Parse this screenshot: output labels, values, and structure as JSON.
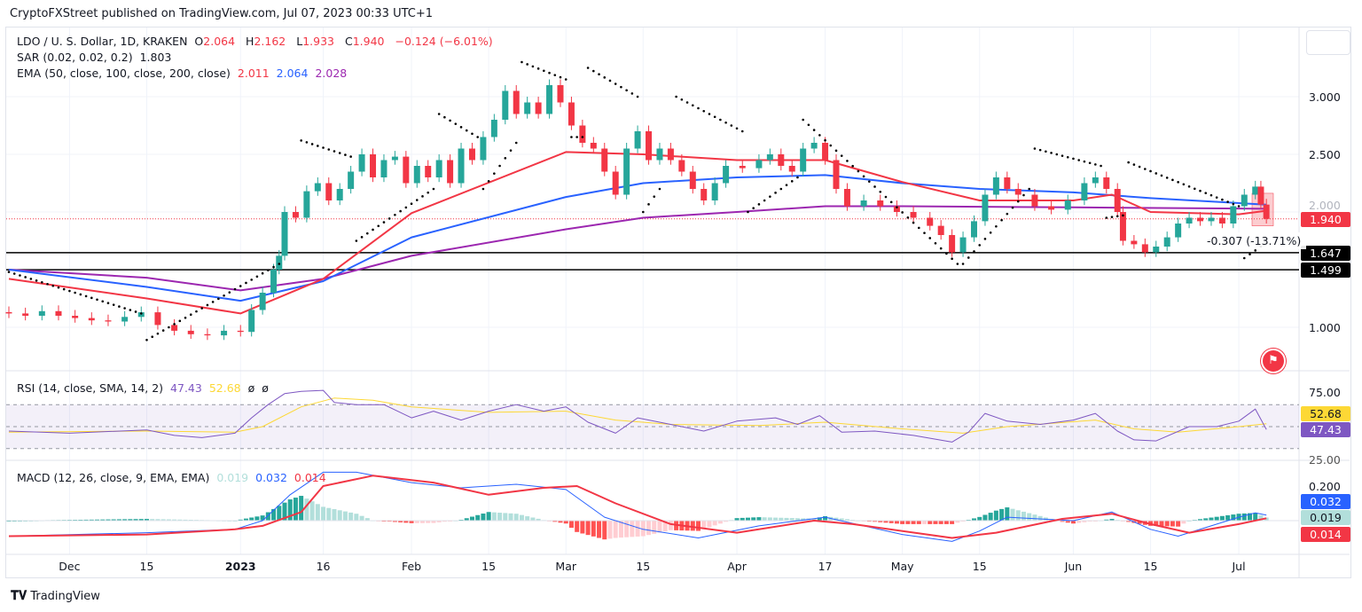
{
  "header": {
    "publisher": "CryptoFXStreet published on TradingView.com, Jul 07, 2023 00:33 UTC+1"
  },
  "legend": {
    "symbol": "LDO / U. S. Dollar, 1D, KRAKEN",
    "o_label": "O",
    "o": "2.064",
    "h_label": "H",
    "h": "2.162",
    "l_label": "L",
    "l": "1.933",
    "c_label": "C",
    "c": "1.940",
    "change": "−0.124 (−6.01%)",
    "sar": "SAR (0.02, 0.02, 0.2)",
    "sar_value": "1.803",
    "ema": "EMA (50, close, 100, close, 200, close)",
    "ema50": "2.011",
    "ema100": "2.064",
    "ema200": "2.028",
    "rsi": "RSI (14, close, SMA, 14, 2)",
    "rsi_value": "47.43",
    "rsi_sma": "52.68",
    "rsi_extra1": "ø",
    "rsi_extra2": "ø",
    "macd": "MACD (12, 26, close, 9, EMA, EMA)",
    "macd_hist": "0.019",
    "macd_line": "0.032",
    "macd_signal": "0.014"
  },
  "price_axis": {
    "ticks": [
      "3.000",
      "2.500",
      "2.000",
      "1.000"
    ],
    "last_price": "1.940",
    "level1": "1.647",
    "level2": "1.499"
  },
  "rsi_axis": {
    "ticks": [
      "75.00",
      "25.00"
    ],
    "sma_tag": "52.68",
    "rsi_tag": "47.43"
  },
  "macd_axis": {
    "ticks": [
      "0.200"
    ],
    "macd_tag": "0.032",
    "hist_tag": "0.019",
    "signal_tag": "0.014"
  },
  "measure": {
    "text": "-0.307 (-13.71%)"
  },
  "time_axis": [
    {
      "d": "2022-12-01",
      "t": "Dec"
    },
    {
      "d": "2022-12-15",
      "t": "15"
    },
    {
      "d": "2023-01-01",
      "t": "2023"
    },
    {
      "d": "2023-01-16",
      "t": "16"
    },
    {
      "d": "2023-02-01",
      "t": "Feb"
    },
    {
      "d": "2023-02-15",
      "t": "15"
    },
    {
      "d": "2023-03-01",
      "t": "Mar"
    },
    {
      "d": "2023-03-15",
      "t": "15"
    },
    {
      "d": "2023-04-01",
      "t": "Apr"
    },
    {
      "d": "2023-04-17",
      "t": "17"
    },
    {
      "d": "2023-05-01",
      "t": "May"
    },
    {
      "d": "2023-05-15",
      "t": "15"
    },
    {
      "d": "2023-06-01",
      "t": "Jun"
    },
    {
      "d": "2023-06-15",
      "t": "15"
    },
    {
      "d": "2023-07-01",
      "t": "Jul"
    }
  ],
  "footer": {
    "brand": "TradingView"
  },
  "colors": {
    "up": "#26a69a",
    "down": "#f23645",
    "ema50": "#f23645",
    "ema100": "#2962ff",
    "ema200": "#9c27b0",
    "rsi": "#7e57c2",
    "rsi_sma": "#fdd835",
    "macd": "#2962ff",
    "signal": "#f23645"
  },
  "chart_data": {
    "type": "candlestick",
    "title": "LDO / U. S. Dollar, 1D, KRAKEN",
    "ylim": [
      0.75,
      3.35
    ],
    "horizontal_levels": [
      1.647,
      1.499
    ],
    "closes": [
      [
        "2022-11-20",
        1.12
      ],
      [
        "2022-11-23",
        1.1
      ],
      [
        "2022-11-26",
        1.14
      ],
      [
        "2022-11-29",
        1.1
      ],
      [
        "2022-12-02",
        1.08
      ],
      [
        "2022-12-05",
        1.06
      ],
      [
        "2022-12-08",
        1.05
      ],
      [
        "2022-12-11",
        1.09
      ],
      [
        "2022-12-14",
        1.13
      ],
      [
        "2022-12-17",
        1.02
      ],
      [
        "2022-12-20",
        0.97
      ],
      [
        "2022-12-23",
        0.94
      ],
      [
        "2022-12-26",
        0.93
      ],
      [
        "2022-12-29",
        0.97
      ],
      [
        "2023-01-01",
        0.96
      ],
      [
        "2023-01-03",
        1.15
      ],
      [
        "2023-01-05",
        1.3
      ],
      [
        "2023-01-07",
        1.5
      ],
      [
        "2023-01-08",
        1.62
      ],
      [
        "2023-01-09",
        2.0
      ],
      [
        "2023-01-11",
        1.95
      ],
      [
        "2023-01-13",
        2.18
      ],
      [
        "2023-01-15",
        2.25
      ],
      [
        "2023-01-17",
        2.1
      ],
      [
        "2023-01-19",
        2.2
      ],
      [
        "2023-01-21",
        2.35
      ],
      [
        "2023-01-23",
        2.5
      ],
      [
        "2023-01-25",
        2.3
      ],
      [
        "2023-01-27",
        2.45
      ],
      [
        "2023-01-29",
        2.48
      ],
      [
        "2023-01-31",
        2.25
      ],
      [
        "2023-02-02",
        2.4
      ],
      [
        "2023-02-04",
        2.3
      ],
      [
        "2023-02-06",
        2.45
      ],
      [
        "2023-02-08",
        2.25
      ],
      [
        "2023-02-10",
        2.55
      ],
      [
        "2023-02-12",
        2.45
      ],
      [
        "2023-02-14",
        2.65
      ],
      [
        "2023-02-16",
        2.8
      ],
      [
        "2023-02-18",
        3.05
      ],
      [
        "2023-02-20",
        2.85
      ],
      [
        "2023-02-22",
        2.95
      ],
      [
        "2023-02-24",
        2.85
      ],
      [
        "2023-02-26",
        3.1
      ],
      [
        "2023-02-28",
        2.95
      ],
      [
        "2023-03-02",
        2.75
      ],
      [
        "2023-03-04",
        2.6
      ],
      [
        "2023-03-06",
        2.55
      ],
      [
        "2023-03-08",
        2.35
      ],
      [
        "2023-03-10",
        2.15
      ],
      [
        "2023-03-12",
        2.55
      ],
      [
        "2023-03-14",
        2.7
      ],
      [
        "2023-03-16",
        2.45
      ],
      [
        "2023-03-18",
        2.55
      ],
      [
        "2023-03-20",
        2.45
      ],
      [
        "2023-03-22",
        2.35
      ],
      [
        "2023-03-24",
        2.2
      ],
      [
        "2023-03-26",
        2.1
      ],
      [
        "2023-03-28",
        2.25
      ],
      [
        "2023-03-30",
        2.4
      ],
      [
        "2023-04-02",
        2.38
      ],
      [
        "2023-04-05",
        2.45
      ],
      [
        "2023-04-07",
        2.5
      ],
      [
        "2023-04-09",
        2.4
      ],
      [
        "2023-04-11",
        2.35
      ],
      [
        "2023-04-13",
        2.55
      ],
      [
        "2023-04-15",
        2.6
      ],
      [
        "2023-04-17",
        2.45
      ],
      [
        "2023-04-19",
        2.2
      ],
      [
        "2023-04-21",
        2.05
      ],
      [
        "2023-04-24",
        2.1
      ],
      [
        "2023-04-27",
        2.05
      ],
      [
        "2023-04-30",
        2.0
      ],
      [
        "2023-05-03",
        1.95
      ],
      [
        "2023-05-06",
        1.88
      ],
      [
        "2023-05-08",
        1.8
      ],
      [
        "2023-05-10",
        1.65
      ],
      [
        "2023-05-12",
        1.78
      ],
      [
        "2023-05-14",
        1.92
      ],
      [
        "2023-05-16",
        2.15
      ],
      [
        "2023-05-18",
        2.3
      ],
      [
        "2023-05-20",
        2.2
      ],
      [
        "2023-05-22",
        2.15
      ],
      [
        "2023-05-25",
        2.05
      ],
      [
        "2023-05-28",
        2.02
      ],
      [
        "2023-05-31",
        2.1
      ],
      [
        "2023-06-03",
        2.25
      ],
      [
        "2023-06-05",
        2.3
      ],
      [
        "2023-06-07",
        2.2
      ],
      [
        "2023-06-09",
        2.0
      ],
      [
        "2023-06-10",
        1.75
      ],
      [
        "2023-06-12",
        1.72
      ],
      [
        "2023-06-14",
        1.65
      ],
      [
        "2023-06-16",
        1.7
      ],
      [
        "2023-06-18",
        1.78
      ],
      [
        "2023-06-20",
        1.9
      ],
      [
        "2023-06-22",
        1.95
      ],
      [
        "2023-06-24",
        1.92
      ],
      [
        "2023-06-26",
        1.95
      ],
      [
        "2023-06-28",
        1.9
      ],
      [
        "2023-06-30",
        2.05
      ],
      [
        "2023-07-02",
        2.15
      ],
      [
        "2023-07-04",
        2.22
      ],
      [
        "2023-07-05",
        2.064
      ],
      [
        "2023-07-06",
        1.94
      ]
    ],
    "ema50": [
      [
        "2022-11-20",
        1.42
      ],
      [
        "2022-12-15",
        1.25
      ],
      [
        "2023-01-01",
        1.12
      ],
      [
        "2023-01-16",
        1.42
      ],
      [
        "2023-02-01",
        1.99
      ],
      [
        "2023-03-01",
        2.52
      ],
      [
        "2023-03-15",
        2.5
      ],
      [
        "2023-04-01",
        2.45
      ],
      [
        "2023-04-17",
        2.45
      ],
      [
        "2023-05-01",
        2.26
      ],
      [
        "2023-05-15",
        2.1
      ],
      [
        "2023-06-01",
        2.1
      ],
      [
        "2023-06-08",
        2.15
      ],
      [
        "2023-06-15",
        2.0
      ],
      [
        "2023-07-01",
        1.98
      ],
      [
        "2023-07-06",
        2.011
      ]
    ],
    "ema100": [
      [
        "2022-11-20",
        1.5
      ],
      [
        "2022-12-15",
        1.35
      ],
      [
        "2023-01-01",
        1.23
      ],
      [
        "2023-01-16",
        1.4
      ],
      [
        "2023-02-01",
        1.78
      ],
      [
        "2023-03-01",
        2.13
      ],
      [
        "2023-03-15",
        2.25
      ],
      [
        "2023-04-01",
        2.3
      ],
      [
        "2023-04-17",
        2.32
      ],
      [
        "2023-05-01",
        2.25
      ],
      [
        "2023-05-15",
        2.2
      ],
      [
        "2023-06-01",
        2.17
      ],
      [
        "2023-06-15",
        2.12
      ],
      [
        "2023-07-06",
        2.064
      ]
    ],
    "ema200": [
      [
        "2022-11-20",
        1.5
      ],
      [
        "2022-12-15",
        1.43
      ],
      [
        "2023-01-01",
        1.32
      ],
      [
        "2023-01-16",
        1.42
      ],
      [
        "2023-02-01",
        1.62
      ],
      [
        "2023-03-01",
        1.85
      ],
      [
        "2023-03-15",
        1.95
      ],
      [
        "2023-04-01",
        2.0
      ],
      [
        "2023-04-17",
        2.05
      ],
      [
        "2023-05-01",
        2.05
      ],
      [
        "2023-06-01",
        2.04
      ],
      [
        "2023-07-06",
        2.028
      ]
    ],
    "sar": [
      [
        "2022-11-20",
        "2022-12-14",
        1.48,
        1.12
      ],
      [
        "2022-12-15",
        "2023-01-08",
        0.89,
        1.55
      ],
      [
        "2023-01-12",
        "2023-01-21",
        2.62,
        2.48
      ],
      [
        "2023-01-22",
        "2023-02-05",
        1.75,
        2.2
      ],
      [
        "2023-02-06",
        "2023-02-13",
        2.85,
        2.65
      ],
      [
        "2023-02-14",
        "2023-02-20",
        2.2,
        2.6
      ],
      [
        "2023-02-21",
        "2023-03-01",
        3.3,
        3.15
      ],
      [
        "2023-03-02",
        "2023-03-04",
        2.65,
        2.65
      ],
      [
        "2023-03-05",
        "2023-03-14",
        3.25,
        3.0
      ],
      [
        "2023-03-15",
        "2023-03-18",
        2.0,
        2.2
      ],
      [
        "2023-03-21",
        "2023-04-02",
        3.0,
        2.7
      ],
      [
        "2023-04-03",
        "2023-04-12",
        2.0,
        2.3
      ],
      [
        "2023-04-13",
        "2023-05-11",
        2.8,
        1.55
      ],
      [
        "2023-05-12",
        "2023-05-24",
        1.55,
        2.2
      ],
      [
        "2023-05-25",
        "2023-06-06",
        2.55,
        2.4
      ],
      [
        "2023-06-07",
        "2023-06-10",
        1.95,
        1.97
      ],
      [
        "2023-06-11",
        "2023-07-01",
        2.43,
        2.05
      ],
      [
        "2023-07-02",
        "2023-07-05",
        1.6,
        1.7
      ]
    ],
    "rsi": [
      [
        "2022-11-20",
        46
      ],
      [
        "2022-12-01",
        44
      ],
      [
        "2022-12-15",
        47
      ],
      [
        "2022-12-20",
        42
      ],
      [
        "2022-12-25",
        40
      ],
      [
        "2022-12-31",
        44
      ],
      [
        "2023-01-03",
        58
      ],
      [
        "2023-01-06",
        70
      ],
      [
        "2023-01-09",
        80
      ],
      [
        "2023-01-12",
        82
      ],
      [
        "2023-01-16",
        83
      ],
      [
        "2023-01-18",
        72
      ],
      [
        "2023-01-22",
        70
      ],
      [
        "2023-01-27",
        70
      ],
      [
        "2023-02-01",
        58
      ],
      [
        "2023-02-05",
        64
      ],
      [
        "2023-02-10",
        56
      ],
      [
        "2023-02-15",
        64
      ],
      [
        "2023-02-20",
        70
      ],
      [
        "2023-02-25",
        64
      ],
      [
        "2023-03-01",
        68
      ],
      [
        "2023-03-05",
        54
      ],
      [
        "2023-03-10",
        44
      ],
      [
        "2023-03-14",
        58
      ],
      [
        "2023-03-20",
        52
      ],
      [
        "2023-03-26",
        46
      ],
      [
        "2023-04-01",
        55
      ],
      [
        "2023-04-08",
        58
      ],
      [
        "2023-04-12",
        52
      ],
      [
        "2023-04-16",
        60
      ],
      [
        "2023-04-20",
        45
      ],
      [
        "2023-04-26",
        46
      ],
      [
        "2023-05-03",
        42
      ],
      [
        "2023-05-10",
        36
      ],
      [
        "2023-05-13",
        45
      ],
      [
        "2023-05-16",
        62
      ],
      [
        "2023-05-20",
        55
      ],
      [
        "2023-05-26",
        52
      ],
      [
        "2023-06-01",
        56
      ],
      [
        "2023-06-05",
        62
      ],
      [
        "2023-06-09",
        46
      ],
      [
        "2023-06-12",
        38
      ],
      [
        "2023-06-16",
        37
      ],
      [
        "2023-06-22",
        50
      ],
      [
        "2023-06-27",
        50
      ],
      [
        "2023-07-01",
        55
      ],
      [
        "2023-07-04",
        66
      ],
      [
        "2023-07-06",
        47.43
      ]
    ],
    "rsi_sma": [
      [
        "2022-11-20",
        45
      ],
      [
        "2022-12-15",
        46
      ],
      [
        "2022-12-31",
        45
      ],
      [
        "2023-01-05",
        50
      ],
      [
        "2023-01-12",
        68
      ],
      [
        "2023-01-18",
        76
      ],
      [
        "2023-01-25",
        74
      ],
      [
        "2023-02-01",
        68
      ],
      [
        "2023-02-15",
        63
      ],
      [
        "2023-03-01",
        64
      ],
      [
        "2023-03-10",
        56
      ],
      [
        "2023-03-20",
        52
      ],
      [
        "2023-04-05",
        51
      ],
      [
        "2023-04-17",
        54
      ],
      [
        "2023-05-01",
        48
      ],
      [
        "2023-05-12",
        44
      ],
      [
        "2023-05-20",
        50
      ],
      [
        "2023-06-05",
        56
      ],
      [
        "2023-06-12",
        48
      ],
      [
        "2023-06-20",
        45
      ],
      [
        "2023-07-01",
        50
      ],
      [
        "2023-07-06",
        52.68
      ]
    ],
    "macd": [
      [
        "2022-11-20",
        -0.09
      ],
      [
        "2022-12-15",
        -0.07
      ],
      [
        "2022-12-31",
        -0.05
      ],
      [
        "2023-01-05",
        0.0
      ],
      [
        "2023-01-10",
        0.15
      ],
      [
        "2023-01-16",
        0.28
      ],
      [
        "2023-01-22",
        0.28
      ],
      [
        "2023-02-01",
        0.22
      ],
      [
        "2023-02-10",
        0.19
      ],
      [
        "2023-02-15",
        0.2
      ],
      [
        "2023-02-20",
        0.21
      ],
      [
        "2023-03-01",
        0.18
      ],
      [
        "2023-03-08",
        0.02
      ],
      [
        "2023-03-15",
        -0.05
      ],
      [
        "2023-03-25",
        -0.1
      ],
      [
        "2023-04-05",
        -0.03
      ],
      [
        "2023-04-17",
        0.02
      ],
      [
        "2023-05-01",
        -0.08
      ],
      [
        "2023-05-10",
        -0.12
      ],
      [
        "2023-05-15",
        -0.06
      ],
      [
        "2023-05-20",
        0.02
      ],
      [
        "2023-06-01",
        0.0
      ],
      [
        "2023-06-08",
        0.05
      ],
      [
        "2023-06-15",
        -0.05
      ],
      [
        "2023-06-20",
        -0.09
      ],
      [
        "2023-07-01",
        0.02
      ],
      [
        "2023-07-04",
        0.045
      ],
      [
        "2023-07-06",
        0.032
      ]
    ],
    "signal": [
      [
        "2022-11-20",
        -0.09
      ],
      [
        "2022-12-15",
        -0.08
      ],
      [
        "2022-12-31",
        -0.05
      ],
      [
        "2023-01-05",
        -0.03
      ],
      [
        "2023-01-12",
        0.05
      ],
      [
        "2023-01-16",
        0.2
      ],
      [
        "2023-01-25",
        0.26
      ],
      [
        "2023-02-05",
        0.22
      ],
      [
        "2023-02-15",
        0.15
      ],
      [
        "2023-02-25",
        0.19
      ],
      [
        "2023-03-03",
        0.2
      ],
      [
        "2023-03-10",
        0.1
      ],
      [
        "2023-03-20",
        -0.02
      ],
      [
        "2023-04-01",
        -0.07
      ],
      [
        "2023-04-15",
        0.0
      ],
      [
        "2023-04-22",
        -0.02
      ],
      [
        "2023-05-10",
        -0.1
      ],
      [
        "2023-05-18",
        -0.07
      ],
      [
        "2023-05-30",
        0.01
      ],
      [
        "2023-06-08",
        0.04
      ],
      [
        "2023-06-15",
        -0.02
      ],
      [
        "2023-06-22",
        -0.07
      ],
      [
        "2023-07-01",
        -0.02
      ],
      [
        "2023-07-06",
        0.014
      ]
    ]
  }
}
